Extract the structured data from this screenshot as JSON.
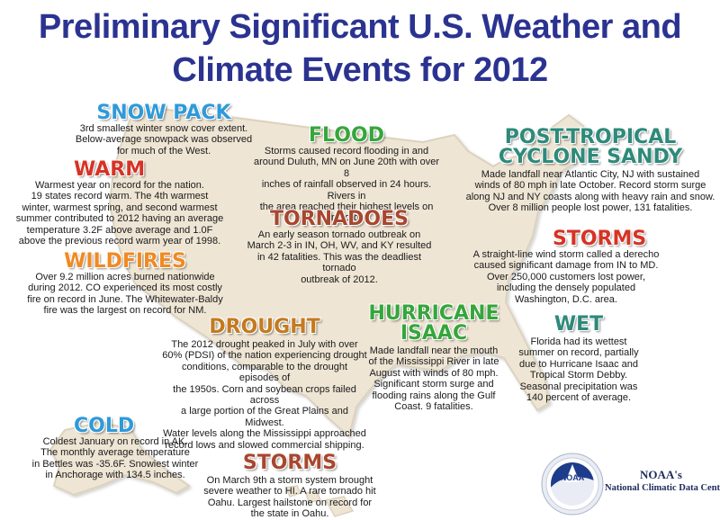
{
  "title": {
    "line1": "Preliminary Significant U.S. Weather and",
    "line2": "Climate Events for 2012"
  },
  "colors": {
    "title": "#2b3391",
    "land": "#eee5d4",
    "land_edge": "#dcd2bd",
    "heading_blue": "#2f9ad9",
    "heading_red": "#d63325",
    "heading_orange": "#f08a22",
    "heading_brown": "#c57a1f",
    "heading_green": "#36a63b",
    "heading_teal": "#2e8a7a",
    "heading_dark_red": "#a8472e"
  },
  "logo": {
    "icon": "noaa-logo-icon",
    "label": "NOAA"
  },
  "credit": {
    "line1": "NOAA's",
    "line2": "National Climatic Data Center"
  },
  "events": {
    "snow_pack": {
      "title": "SNOW PACK",
      "lines": [
        "3rd smallest winter snow cover extent.",
        "Below-average snowpack was observed",
        "for much of the West."
      ]
    },
    "warm": {
      "title": "WARM",
      "lines": [
        "Warmest year on record for the nation.",
        "19 states record warm. The 4th warmest",
        "winter, warmest spring, and second warmest",
        "summer contributed to 2012 having an average",
        "temperature 3.2F above average and 1.0F",
        "above the previous record warm year of 1998."
      ]
    },
    "wildfires": {
      "title": "WILDFIRES",
      "lines": [
        "Over 9.2 million acres burned nationwide",
        "during 2012. CO experienced its most costly",
        "fire on record in June. The Whitewater-Baldy",
        "fire was the largest on record for NM."
      ]
    },
    "flood": {
      "title": "FLOOD",
      "lines": [
        "Storms caused record flooding in and",
        "around Duluth, MN on June 20th with over 8",
        "inches of rainfall observed in 24 hours.  Rivers in",
        "the area reached their highest levels on record."
      ]
    },
    "tornadoes": {
      "title": "TORNADOES",
      "lines": [
        "An early season tornado outbreak on",
        "March 2-3 in IN, OH, WV, and KY resulted",
        "in 42 fatalities. This was the deadliest tornado",
        "outbreak of 2012."
      ]
    },
    "sandy": {
      "title_line1": "POST-TROPICAL",
      "title_line2": "CYCLONE SANDY",
      "lines": [
        "Made landfall near Atlantic City, NJ with sustained",
        "winds of 80 mph in late October. Record storm surge",
        "along NJ and NY coasts along with heavy rain and snow.",
        "Over 8 million people lost power, 131 fatalities."
      ]
    },
    "storms_east": {
      "title": "STORMS",
      "lines": [
        "A straight-line wind storm called a derecho",
        "caused significant damage from IN to MD.",
        "Over 250,000 customers lost power,",
        "including the densely populated",
        "Washington, D.C. area."
      ]
    },
    "drought": {
      "title": "DROUGHT",
      "lines": [
        "The 2012 drought peaked in July with over",
        "60% (PDSI) of the nation experiencing drought",
        "conditions, comparable to the drought episodes of",
        "the 1950s. Corn and soybean crops failed across",
        "a large portion of the Great Plains and Midwest.",
        "Water levels along the Mississippi approached",
        "record lows and slowed commercial shipping."
      ]
    },
    "isaac": {
      "title_line1": "HURRICANE",
      "title_line2": "ISAAC",
      "lines": [
        "Made landfall near the mouth",
        "of the Mississippi River in late",
        "August with winds of 80 mph.",
        "Significant storm surge and",
        "flooding rains along the Gulf",
        "Coast. 9 fatalities."
      ]
    },
    "wet": {
      "title": "WET",
      "lines": [
        "Florida had its wettest",
        "summer on record, partially",
        "due to Hurricane Isaac and",
        "Tropical Storm Debby.",
        "Seasonal precipitation was",
        "140 percent of average."
      ]
    },
    "cold": {
      "title": "COLD",
      "lines": [
        "Coldest January on record in AK.",
        "The monthly average temperature",
        "in Bettles was -35.6F. Snowiest winter",
        "in Anchorage with 134.5 inches."
      ]
    },
    "storms_hawaii": {
      "title": "STORMS",
      "lines": [
        "On March 9th a storm system brought",
        "severe weather to HI. A rare tornado hit",
        "Oahu. Largest hailstone on record for",
        "the state in Oahu."
      ]
    }
  }
}
